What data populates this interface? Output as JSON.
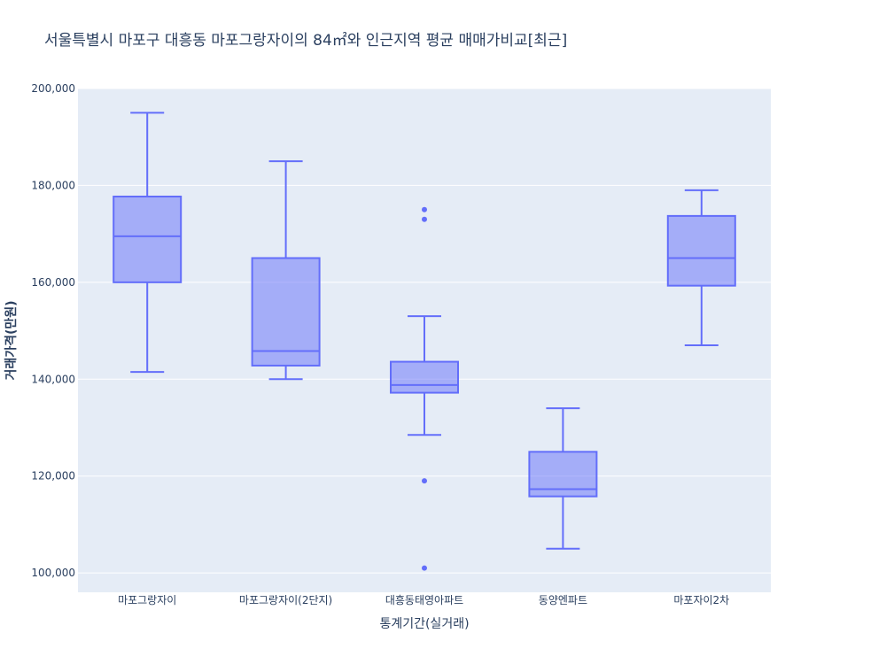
{
  "chart_data": {
    "type": "box",
    "title": "서울특별시 마포구 대흥동 마포그랑자이의 84㎡와 인근지역 평균 매매가비교[최근]",
    "xlabel": "통계기간(실거래)",
    "ylabel": "거래가격(만원)",
    "ylim": [
      96000,
      200000
    ],
    "yticks": [
      100000,
      120000,
      140000,
      160000,
      180000,
      200000
    ],
    "ytick_labels": [
      "100,000",
      "120,000",
      "140,000",
      "160,000",
      "180,000",
      "200,000"
    ],
    "grid": true,
    "colors": {
      "box_line": "#636efa",
      "box_fill": "rgba(99,110,250,0.5)",
      "plot_bg": "#e5ecf6",
      "grid": "#ffffff",
      "text": "#2a3f5f"
    },
    "categories": [
      "마포그랑자이",
      "마포그랑자이(2단지)",
      "대흥동태영아파트",
      "동양엔파트",
      "마포자이2차"
    ],
    "boxes": [
      {
        "min": 141500,
        "q1": 160000,
        "median": 169500,
        "q3": 177700,
        "max": 195000,
        "outliers": []
      },
      {
        "min": 140000,
        "q1": 142800,
        "median": 145800,
        "q3": 165000,
        "max": 185000,
        "outliers": []
      },
      {
        "min": 128500,
        "q1": 137200,
        "median": 138800,
        "q3": 143600,
        "max": 153000,
        "outliers": [
          175000,
          173000,
          119000,
          101000
        ]
      },
      {
        "min": 105000,
        "q1": 115800,
        "median": 117300,
        "q3": 125000,
        "max": 134000,
        "outliers": []
      },
      {
        "min": 147000,
        "q1": 159300,
        "median": 165000,
        "q3": 173700,
        "max": 179000,
        "outliers": []
      }
    ]
  }
}
